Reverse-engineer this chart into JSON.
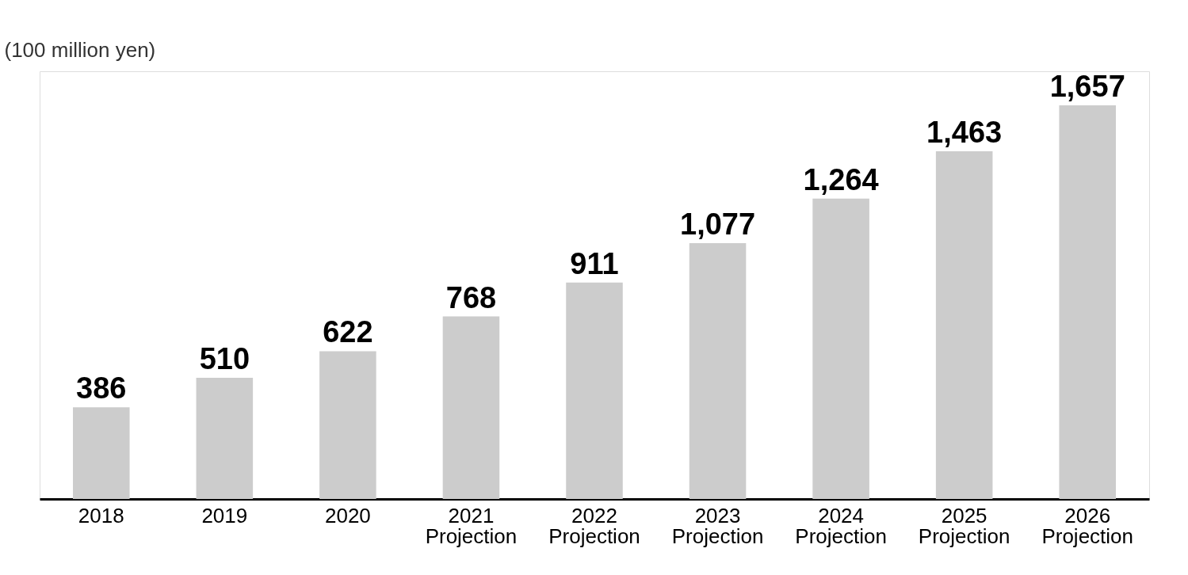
{
  "chart_data": {
    "type": "bar",
    "ylabel": "(100 million yen)",
    "categories": [
      "2018",
      "2019",
      "2020",
      "2021\nProjection",
      "2022\nProjection",
      "2023\nProjection",
      "2024\nProjection",
      "2025\nProjection",
      "2026\nProjection"
    ],
    "values": [
      386,
      510,
      622,
      768,
      911,
      1077,
      1264,
      1463,
      1657
    ],
    "value_labels": [
      "386",
      "510",
      "622",
      "768",
      "911",
      "1,077",
      "1,264",
      "1,463",
      "1,657"
    ],
    "color": "#cccccc",
    "grid": false
  }
}
